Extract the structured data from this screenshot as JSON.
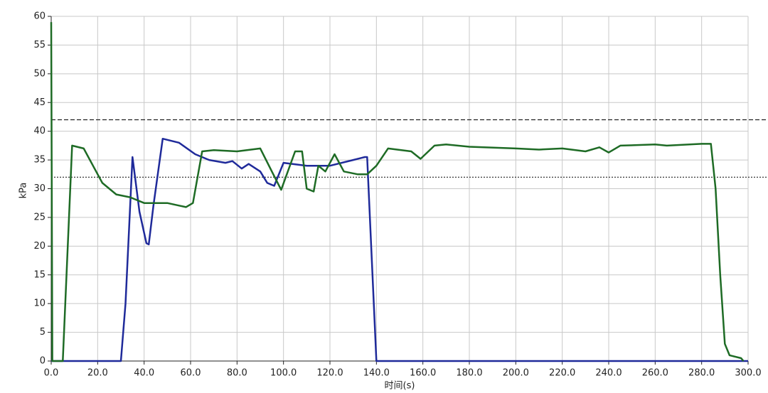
{
  "chart_data": {
    "type": "line",
    "x_label": "时间(s)",
    "y_label": "kPa",
    "xlim": [
      0,
      300
    ],
    "ylim": [
      0,
      60
    ],
    "xticks": [
      {
        "value": 0,
        "label": "0.0"
      },
      {
        "value": 20,
        "label": "20.0"
      },
      {
        "value": 40,
        "label": "40.0"
      },
      {
        "value": 60,
        "label": "60.0"
      },
      {
        "value": 80,
        "label": "80.0"
      },
      {
        "value": 100,
        "label": "100.0"
      },
      {
        "value": 120,
        "label": "120.0"
      },
      {
        "value": 140,
        "label": "140.0"
      },
      {
        "value": 160,
        "label": "160.0"
      },
      {
        "value": 180,
        "label": "180.0"
      },
      {
        "value": 200,
        "label": "200.0"
      },
      {
        "value": 220,
        "label": "220.0"
      },
      {
        "value": 240,
        "label": "240.0"
      },
      {
        "value": 260,
        "label": "260.0"
      },
      {
        "value": 280,
        "label": "280.0"
      },
      {
        "value": 300,
        "label": "300.0"
      }
    ],
    "yticks": [
      0,
      5,
      10,
      15,
      20,
      25,
      30,
      35,
      40,
      45,
      50,
      55,
      60
    ],
    "grid": true,
    "reference_lines": [
      {
        "value": 42,
        "style": "dashed",
        "color": "#222222"
      },
      {
        "value": 32,
        "style": "dotted",
        "color": "#222222"
      }
    ],
    "series": [
      {
        "color": "#1f2a9a",
        "x": [
          0,
          30,
          32,
          35,
          38,
          41,
          42,
          44,
          48,
          55,
          62,
          68,
          75,
          78,
          82,
          85,
          90,
          93,
          96,
          100,
          110,
          120,
          130,
          135,
          136,
          140,
          300
        ],
        "values": [
          0,
          0,
          10,
          35.5,
          26,
          20.5,
          20.3,
          27,
          38.7,
          38,
          36,
          35,
          34.5,
          34.8,
          33.5,
          34.3,
          33,
          31,
          30.5,
          34.5,
          34,
          34,
          35,
          35.5,
          35.5,
          0,
          0
        ]
      },
      {
        "color": "#1e6b25",
        "x": [
          0,
          0.5,
          5,
          9,
          14,
          18,
          22,
          28,
          34,
          40,
          45,
          50,
          58,
          61,
          65,
          70,
          80,
          90,
          95,
          99,
          105,
          108,
          110,
          113,
          115,
          118,
          122,
          126,
          132,
          136,
          140,
          145,
          155,
          159,
          165,
          170,
          180,
          200,
          210,
          220,
          230,
          236,
          240,
          245,
          260,
          265,
          280,
          284,
          286,
          288,
          290,
          292,
          297,
          298
        ],
        "values": [
          59,
          0,
          0,
          37.5,
          37,
          34,
          31,
          29,
          28.5,
          27.5,
          27.5,
          27.5,
          26.8,
          27.5,
          36.5,
          36.7,
          36.5,
          37,
          33,
          29.8,
          36.5,
          36.5,
          30,
          29.5,
          34,
          33,
          36,
          33,
          32.5,
          32.5,
          34,
          37,
          36.5,
          35.2,
          37.5,
          37.7,
          37.3,
          37,
          36.8,
          37,
          36.5,
          37.2,
          36.3,
          37.5,
          37.7,
          37.5,
          37.8,
          37.8,
          30,
          15,
          3,
          1,
          0.5,
          0
        ]
      }
    ]
  }
}
